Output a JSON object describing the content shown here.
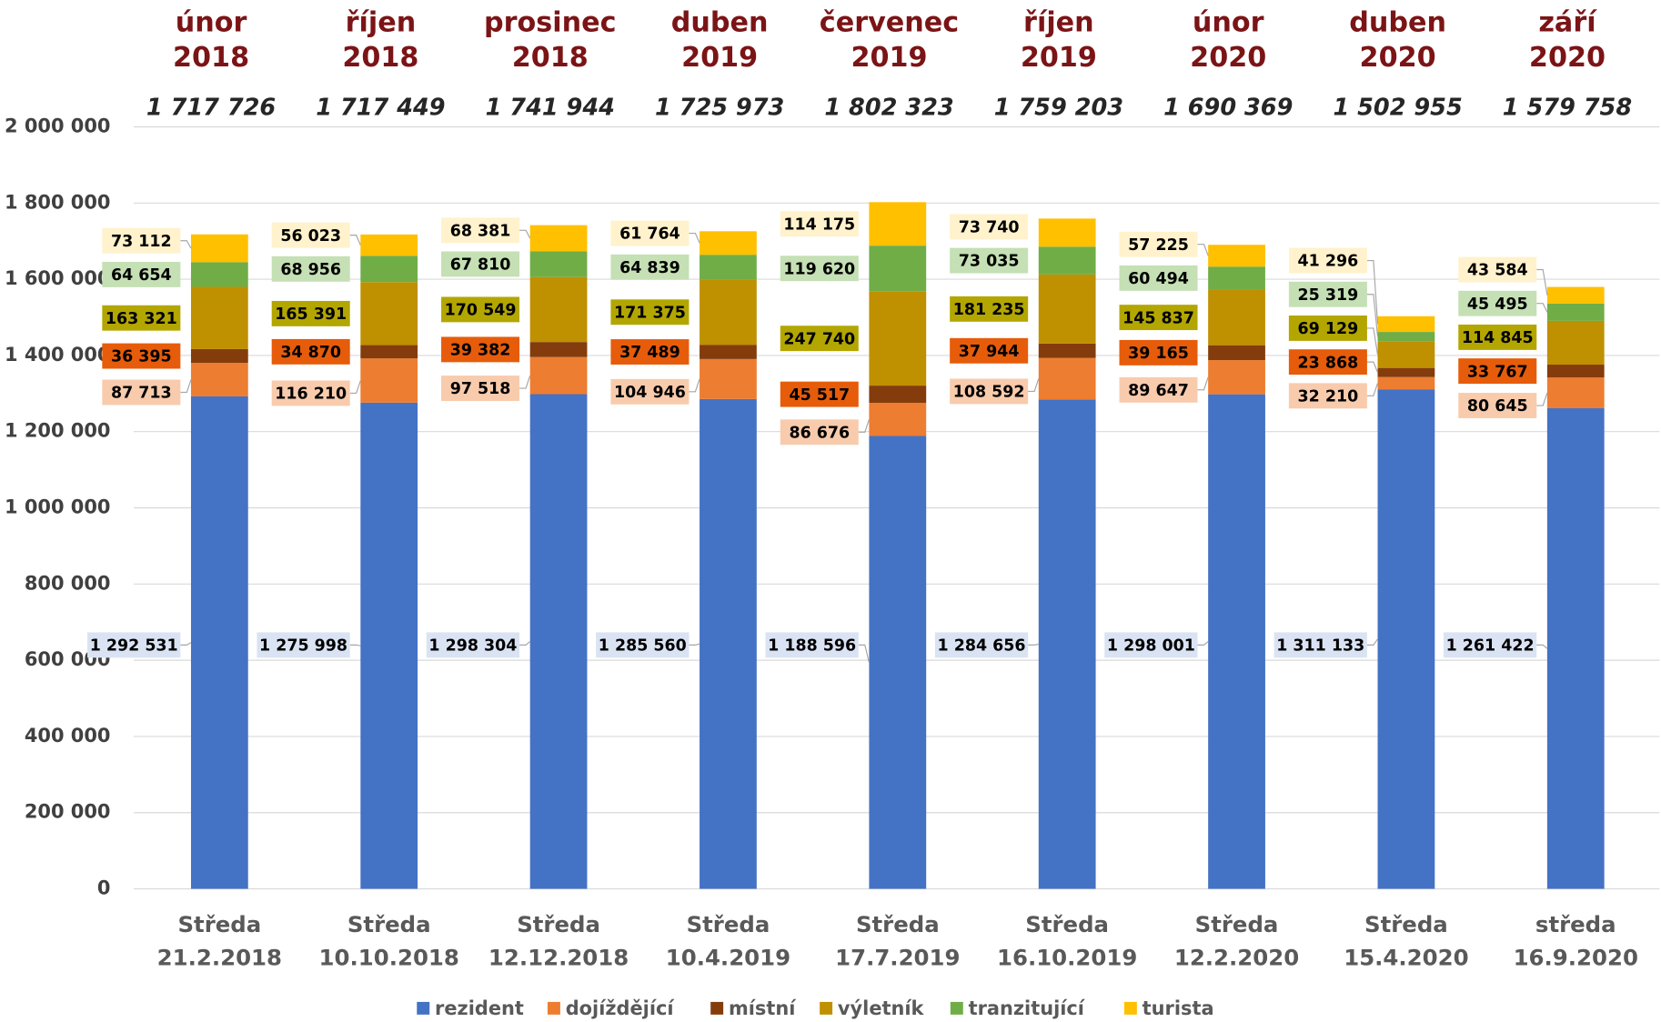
{
  "chart_data": {
    "type": "stacked_bar",
    "categories": [
      [
        "Středa",
        "21.2.2018"
      ],
      [
        "Středa",
        "10.10.2018"
      ],
      [
        "Středa",
        "12.12.2018"
      ],
      [
        "Středa",
        "10.4.2019"
      ],
      [
        "Středa",
        "17.7.2019"
      ],
      [
        "Středa",
        "16.10.2019"
      ],
      [
        "Středa",
        "12.2.2020"
      ],
      [
        "Středa",
        "15.4.2020"
      ],
      [
        "středa",
        "16.9.2020"
      ]
    ],
    "periods": [
      [
        "únor",
        "2018"
      ],
      [
        "říjen",
        "2018"
      ],
      [
        "prosinec",
        "2018"
      ],
      [
        "duben",
        "2019"
      ],
      [
        "červenec",
        "2019"
      ],
      [
        "říjen",
        "2019"
      ],
      [
        "únor",
        "2020"
      ],
      [
        "duben",
        "2020"
      ],
      [
        "září",
        "2020"
      ]
    ],
    "totals": [
      {
        "value": 1717726,
        "label": "1 717 726"
      },
      {
        "value": 1717449,
        "label": "1 717 449"
      },
      {
        "value": 1741944,
        "label": "1 741 944"
      },
      {
        "value": 1725973,
        "label": "1 725 973"
      },
      {
        "value": 1802323,
        "label": "1 802 323"
      },
      {
        "value": 1759203,
        "label": "1 759 203"
      },
      {
        "value": 1690369,
        "label": "1 690 369"
      },
      {
        "value": 1502955,
        "label": "1 502 955"
      },
      {
        "value": 1579758,
        "label": "1 579 758"
      }
    ],
    "series": [
      {
        "name": "rezident",
        "color": "#4472c4",
        "label_bg": "#dae3f3",
        "values": [
          1292531,
          1275998,
          1298304,
          1285560,
          1188596,
          1284656,
          1298001,
          1311133,
          1261422
        ],
        "value_labels": [
          "1 292 531",
          "1 275 998",
          "1 298 304",
          "1 285 560",
          "1 188 596",
          "1 284 656",
          "1 298 001",
          "1 311 133",
          "1 261 422"
        ]
      },
      {
        "name": "dojíždějící",
        "color": "#ed7d31",
        "label_bg": "#f8cbad",
        "values": [
          87713,
          116210,
          97518,
          104946,
          86676,
          108592,
          89647,
          32210,
          80645
        ],
        "value_labels": [
          "87 713",
          "116 210",
          "97 518",
          "104 946",
          "86 676",
          "108 592",
          "89 647",
          "32 210",
          "80 645"
        ]
      },
      {
        "name": "místní",
        "color": "#843c0c",
        "label_bg": "#e65c0a",
        "values": [
          36395,
          34870,
          39382,
          37489,
          45517,
          37944,
          39165,
          23868,
          33767
        ],
        "value_labels": [
          "36 395",
          "34 870",
          "39 382",
          "37 489",
          "45 517",
          "37 944",
          "39 165",
          "23 868",
          "33 767"
        ]
      },
      {
        "name": "výletník",
        "color": "#bf9000",
        "label_bg": "#b3a600",
        "values": [
          163321,
          165391,
          170549,
          171375,
          247740,
          181235,
          145837,
          69129,
          114845
        ],
        "value_labels": [
          "163 321",
          "165 391",
          "170 549",
          "171 375",
          "247 740",
          "181 235",
          "145 837",
          "69 129",
          "114 845"
        ]
      },
      {
        "name": "tranzitující",
        "color": "#70ad47",
        "label_bg": "#c5e0b4",
        "values": [
          64654,
          68956,
          67810,
          64839,
          119620,
          73035,
          60494,
          25319,
          45495
        ],
        "value_labels": [
          "64 654",
          "68 956",
          "67 810",
          "64 839",
          "119 620",
          "73 035",
          "60 494",
          "25 319",
          "45 495"
        ]
      },
      {
        "name": "turista",
        "color": "#ffc000",
        "label_bg": "#fff2cc",
        "values": [
          73112,
          56023,
          68381,
          61764,
          114175,
          73740,
          57225,
          41296,
          43584
        ],
        "value_labels": [
          "73 112",
          "56 023",
          "68 381",
          "61 764",
          "114 175",
          "73 740",
          "57 225",
          "41 296",
          "43 584"
        ]
      }
    ],
    "ylim": [
      0,
      2000000
    ],
    "yticks": [
      0,
      {
        "value": 200000,
        "label": "200 000"
      },
      {
        "value": 400000,
        "label": "400 000"
      },
      {
        "value": 600000,
        "label": "600 000"
      },
      {
        "value": 800000,
        "label": "800 000"
      },
      {
        "value": 1000000,
        "label": "1 000 000"
      },
      {
        "value": 1200000,
        "label": "1 200 000"
      },
      {
        "value": 1400000,
        "label": "1 400 000"
      },
      {
        "value": 1600000,
        "label": "1 600 000"
      },
      {
        "value": 1800000,
        "label": "1 800 000"
      },
      {
        "value": 2000000,
        "label": "2 000 000"
      }
    ],
    "grid": true,
    "legend": "bottom"
  }
}
